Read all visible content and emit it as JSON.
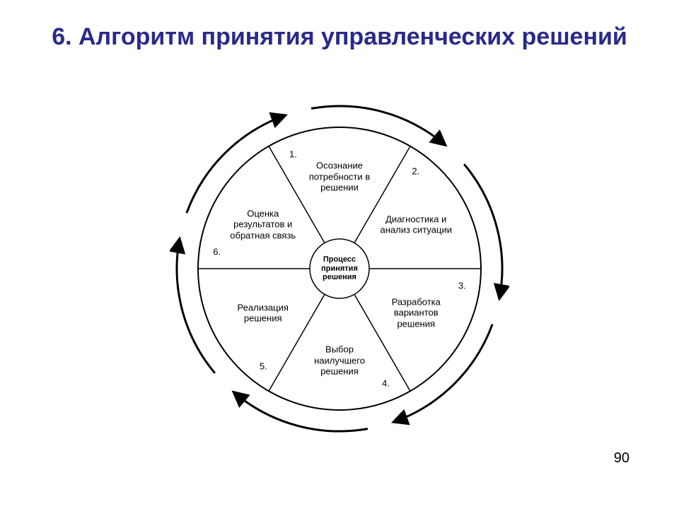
{
  "title": "6. Алгоритм принятия управленческих решений",
  "page_number": "90",
  "diagram": {
    "type": "radial-cycle",
    "center_label": "Процесс принятия решения",
    "outer_arc_radius": 230,
    "main_circle_radius": 200,
    "inner_circle_radius": 42,
    "stroke_color": "#000000",
    "stroke_width_main": 2,
    "stroke_width_arc": 3,
    "background": "#ffffff",
    "sectors": [
      {
        "num": "1.",
        "label": "Осознание потребности в решении",
        "angle": 90,
        "num_r": 175,
        "label_r": 130
      },
      {
        "num": "2.",
        "label": "Диагностика и анализ ситуации",
        "angle": 30,
        "num_r": 175,
        "label_r": 125
      },
      {
        "num": "3.",
        "label": "Разработка вариантов решения",
        "angle": -30,
        "num_r": 175,
        "label_r": 125
      },
      {
        "num": "4.",
        "label": "Выбор наилучшего решения",
        "angle": -90,
        "num_r": 175,
        "label_r": 130
      },
      {
        "num": "5.",
        "label": "Реализация решения",
        "angle": -150,
        "num_r": 175,
        "label_r": 125
      },
      {
        "num": "6.",
        "label": "Оценка результатов и обратная связь",
        "angle": 150,
        "num_r": 175,
        "label_r": 125
      }
    ],
    "radial_line_angles": [
      60,
      0,
      -60,
      -120,
      180,
      120
    ],
    "arc_segments": [
      {
        "start": 100,
        "end": 50
      },
      {
        "start": 40,
        "end": -10
      },
      {
        "start": -20,
        "end": -70
      },
      {
        "start": -80,
        "end": -130
      },
      {
        "start": -140,
        "end": -190
      },
      {
        "start": -200,
        "end": -250
      }
    ]
  }
}
